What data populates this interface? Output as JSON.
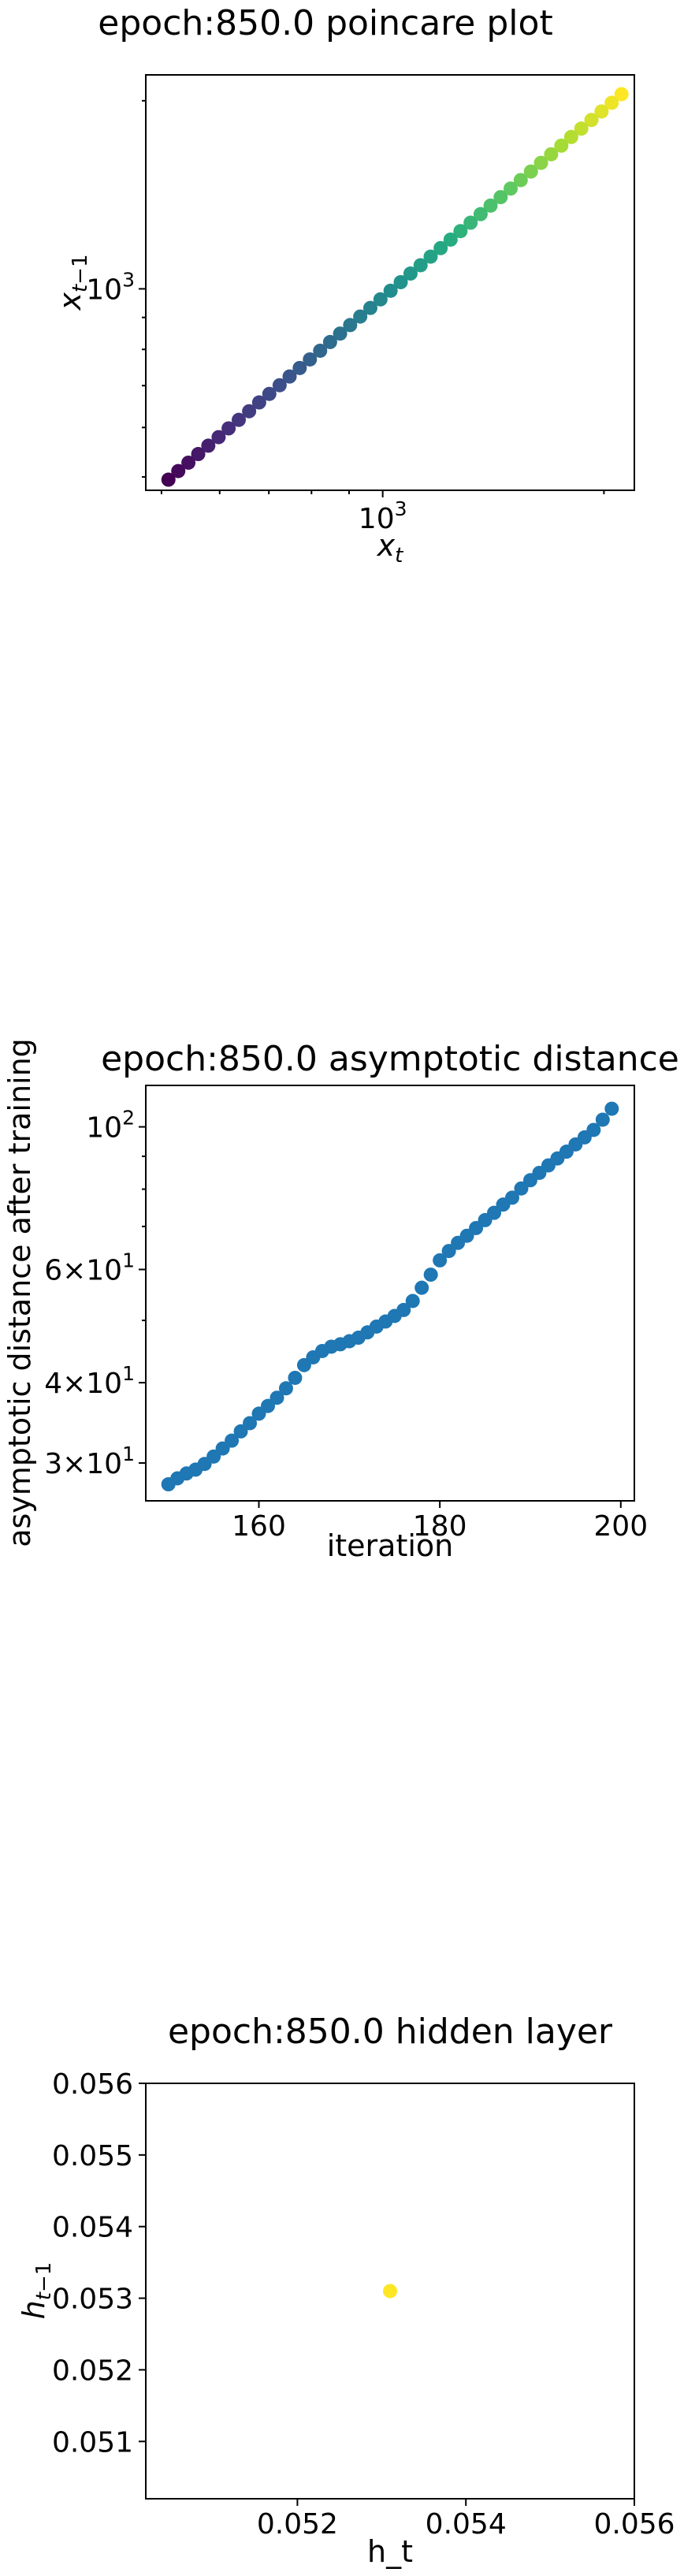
{
  "chart_data": [
    {
      "type": "scatter",
      "title": "epoch:850.0 poincare plot",
      "xlabel": "x_t",
      "ylabel": "x_{t-1}",
      "xscale": "log",
      "yscale": "log",
      "xlim": [
        476,
        2200
      ],
      "ylim": [
        476,
        2200
      ],
      "xticks": [
        {
          "value": 1000,
          "base": "10",
          "exp": "3"
        }
      ],
      "yticks": [
        {
          "value": 1000,
          "base": "10",
          "exp": "3"
        }
      ],
      "colormap": "viridis",
      "points": [
        {
          "x": 2113,
          "y": 2049
        },
        {
          "x": 2049,
          "y": 1985
        },
        {
          "x": 1985,
          "y": 1923
        },
        {
          "x": 1923,
          "y": 1863
        },
        {
          "x": 1863,
          "y": 1805
        },
        {
          "x": 1805,
          "y": 1750
        },
        {
          "x": 1750,
          "y": 1695
        },
        {
          "x": 1695,
          "y": 1642
        },
        {
          "x": 1642,
          "y": 1591
        },
        {
          "x": 1591,
          "y": 1541
        },
        {
          "x": 1541,
          "y": 1493
        },
        {
          "x": 1493,
          "y": 1447
        },
        {
          "x": 1447,
          "y": 1402
        },
        {
          "x": 1402,
          "y": 1359
        },
        {
          "x": 1359,
          "y": 1317
        },
        {
          "x": 1317,
          "y": 1276
        },
        {
          "x": 1276,
          "y": 1237
        },
        {
          "x": 1237,
          "y": 1199
        },
        {
          "x": 1199,
          "y": 1162
        },
        {
          "x": 1162,
          "y": 1126
        },
        {
          "x": 1126,
          "y": 1091
        },
        {
          "x": 1091,
          "y": 1058
        },
        {
          "x": 1058,
          "y": 1025
        },
        {
          "x": 1025,
          "y": 993
        },
        {
          "x": 993,
          "y": 962
        },
        {
          "x": 962,
          "y": 932
        },
        {
          "x": 932,
          "y": 903
        },
        {
          "x": 903,
          "y": 875
        },
        {
          "x": 875,
          "y": 848
        },
        {
          "x": 848,
          "y": 822
        },
        {
          "x": 822,
          "y": 796
        },
        {
          "x": 796,
          "y": 771
        },
        {
          "x": 771,
          "y": 747
        },
        {
          "x": 747,
          "y": 724
        },
        {
          "x": 724,
          "y": 701
        },
        {
          "x": 701,
          "y": 679
        },
        {
          "x": 679,
          "y": 658
        },
        {
          "x": 658,
          "y": 637
        },
        {
          "x": 637,
          "y": 617
        },
        {
          "x": 617,
          "y": 598
        },
        {
          "x": 598,
          "y": 579
        },
        {
          "x": 579,
          "y": 561
        },
        {
          "x": 561,
          "y": 544
        },
        {
          "x": 544,
          "y": 527
        },
        {
          "x": 527,
          "y": 511
        },
        {
          "x": 511,
          "y": 495
        }
      ]
    },
    {
      "type": "scatter",
      "title": "epoch:850.0 asymptotic distance",
      "xlabel": "iteration",
      "ylabel": "asymptotic distance after training",
      "xscale": "linear",
      "yscale": "log",
      "xlim": [
        147.5,
        201.5
      ],
      "ylim": [
        26.2,
        116
      ],
      "xticks": [
        {
          "value": 160,
          "label": "160"
        },
        {
          "value": 180,
          "label": "180"
        },
        {
          "value": 200,
          "label": "200"
        }
      ],
      "yticks": [
        {
          "value": 30,
          "mant": "3",
          "base": "10",
          "exp": "1"
        },
        {
          "value": 40,
          "mant": "4",
          "base": "10",
          "exp": "1"
        },
        {
          "value": 60,
          "mant": "6",
          "base": "10",
          "exp": "1"
        },
        {
          "value": 100,
          "mant": "",
          "base": "10",
          "exp": "2"
        }
      ],
      "color": "#1f77b4",
      "x": [
        150,
        151,
        152,
        153,
        154,
        155,
        156,
        157,
        158,
        159,
        160,
        161,
        162,
        163,
        164,
        165,
        166,
        167,
        168,
        169,
        170,
        171,
        172,
        173,
        174,
        175,
        176,
        177,
        178,
        179,
        180,
        181,
        182,
        183,
        184,
        185,
        186,
        187,
        188,
        189,
        190,
        191,
        192,
        193,
        194,
        195,
        196,
        197,
        198,
        199
      ],
      "y": [
        27.8,
        28.4,
        28.9,
        29.3,
        29.9,
        30.7,
        31.6,
        32.5,
        33.6,
        34.6,
        35.8,
        36.8,
        37.9,
        39.2,
        40.7,
        42.6,
        43.8,
        44.8,
        45.5,
        45.9,
        46.4,
        47.0,
        47.9,
        48.9,
        49.8,
        50.8,
        51.9,
        53.6,
        56.2,
        58.9,
        62.0,
        64.1,
        66.0,
        67.7,
        69.6,
        71.6,
        73.5,
        75.7,
        77.6,
        80.2,
        82.6,
        84.8,
        87.1,
        89.3,
        91.5,
        93.9,
        96.3,
        98.9,
        102.6,
        106.7
      ]
    },
    {
      "type": "scatter",
      "title": "epoch:850.0 hidden layer",
      "xlabel": "h_t",
      "ylabel": "h_{t-1}",
      "xscale": "linear",
      "yscale": "linear",
      "xlim": [
        0.0502,
        0.056
      ],
      "ylim": [
        0.0502,
        0.056
      ],
      "xticks": [
        {
          "value": 0.052,
          "label": "0.052"
        },
        {
          "value": 0.054,
          "label": "0.054"
        },
        {
          "value": 0.056,
          "label": "0.056"
        }
      ],
      "yticks": [
        {
          "value": 0.051,
          "label": "0.051"
        },
        {
          "value": 0.052,
          "label": "0.052"
        },
        {
          "value": 0.053,
          "label": "0.053"
        },
        {
          "value": 0.054,
          "label": "0.054"
        },
        {
          "value": 0.055,
          "label": "0.055"
        },
        {
          "value": 0.056,
          "label": "0.056"
        }
      ],
      "color": "#fde725",
      "points": [
        {
          "x": 0.0531,
          "y": 0.0531
        }
      ]
    }
  ]
}
